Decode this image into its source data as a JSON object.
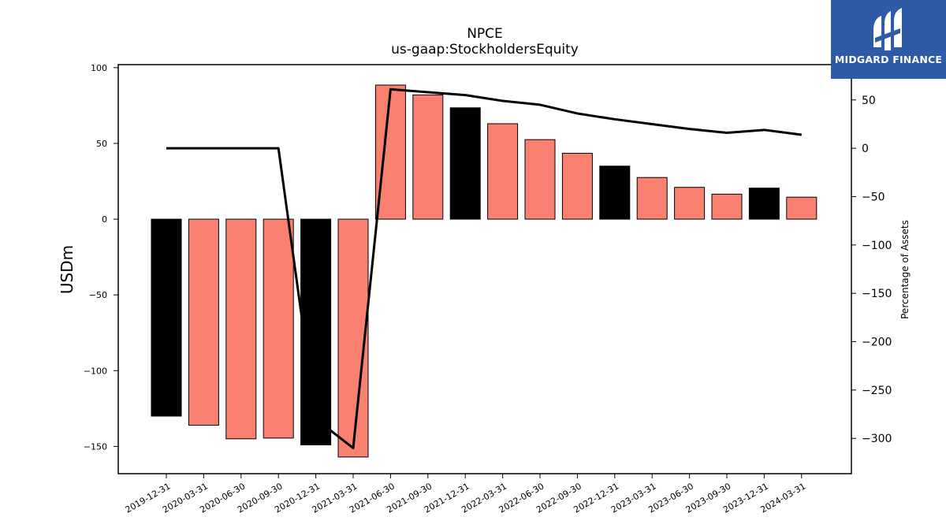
{
  "logo": {
    "text": "MIDGARD FINANCE",
    "background": "#2f5aa8"
  },
  "chart_data": {
    "type": "bar",
    "title": "NPCE",
    "subtitle": "us-gaap:StockholdersEquity",
    "ylabel": "USDm",
    "y2label": "Percentage of Assets",
    "categories": [
      "2019-12-31",
      "2020-03-31",
      "2020-06-30",
      "2020-09-30",
      "2020-12-31",
      "2021-03-31",
      "2021-06-30",
      "2021-09-30",
      "2021-12-31",
      "2022-03-31",
      "2022-06-30",
      "2022-09-30",
      "2022-12-31",
      "2023-03-31",
      "2023-06-30",
      "2023-09-30",
      "2023-12-31",
      "2024-03-31"
    ],
    "ylim": [
      -168,
      102
    ],
    "yticks": [
      -150,
      -100,
      -50,
      0,
      50,
      100
    ],
    "y2lim": [
      -336.5,
      86.5
    ],
    "y2ticks": [
      -300,
      -250,
      -200,
      -150,
      -100,
      -50,
      0,
      50
    ],
    "series": [
      {
        "type": "bar",
        "values": [
          -130,
          -136,
          -145,
          -144.5,
          -149,
          -157,
          88.5,
          82,
          73.5,
          63,
          52.5,
          43.5,
          35,
          27.5,
          21,
          16.5,
          20.5,
          14.5
        ],
        "colors": [
          "#000000",
          "#fa8072",
          "#fa8072",
          "#fa8072",
          "#000000",
          "#fa8072",
          "#fa8072",
          "#fa8072",
          "#000000",
          "#fa8072",
          "#fa8072",
          "#fa8072",
          "#000000",
          "#fa8072",
          "#fa8072",
          "#fa8072",
          "#000000",
          "#fa8072"
        ]
      },
      {
        "type": "line",
        "axis": "right",
        "color": "#000000",
        "values": [
          0,
          0,
          0,
          0,
          -280,
          -310,
          61,
          58,
          55,
          49,
          45,
          36,
          30,
          25,
          20,
          16,
          19,
          14
        ]
      }
    ]
  }
}
